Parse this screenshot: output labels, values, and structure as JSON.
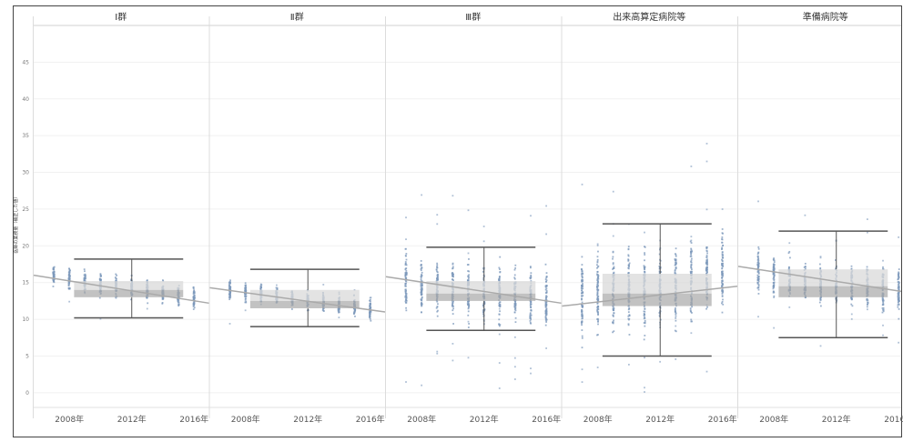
{
  "chart_data": {
    "type": "scatter",
    "ylabel": "医師の業務量（補正した値）",
    "ylim": [
      -2,
      50
    ],
    "yticks": [
      0,
      5,
      10,
      15,
      20,
      25,
      30,
      35,
      40,
      45
    ],
    "xticks": [
      "2008年",
      "2012年",
      "2016年"
    ],
    "grid": true,
    "colors": {
      "points": "#7c98bb",
      "box_light": "#d9d9d9",
      "box_dark": "#a8a8a8",
      "box_line": "#555555",
      "trend": "#aaaaaa"
    },
    "panels": [
      {
        "title": "Ⅰ群",
        "years": [
          2007,
          2008,
          2009,
          2010,
          2011,
          2012,
          2013,
          2014,
          2015,
          2016
        ],
        "centers": [
          16.0,
          15.5,
          15.0,
          14.8,
          14.6,
          14.4,
          14.0,
          13.6,
          13.2,
          12.8
        ],
        "spread": 2.0,
        "box": {
          "whisker_low": 10.2,
          "q1": 13.0,
          "median": 14.0,
          "q3": 15.2,
          "whisker_high": 18.2
        },
        "trend": [
          16.0,
          12.2
        ]
      },
      {
        "title": "Ⅱ群",
        "years": [
          2007,
          2008,
          2009,
          2010,
          2011,
          2012,
          2013,
          2014,
          2015,
          2016
        ],
        "centers": [
          14.0,
          13.6,
          13.3,
          13.0,
          12.8,
          12.6,
          12.3,
          12.0,
          11.7,
          11.4
        ],
        "spread": 1.9,
        "box": {
          "whisker_low": 9.0,
          "q1": 11.5,
          "median": 12.5,
          "q3": 14.0,
          "whisker_high": 16.8
        },
        "trend": [
          14.3,
          11.0
        ]
      },
      {
        "title": "Ⅲ群",
        "years": [
          2007,
          2008,
          2009,
          2010,
          2011,
          2012,
          2013,
          2014,
          2015,
          2016
        ],
        "centers": [
          15.0,
          14.6,
          14.3,
          14.0,
          13.8,
          13.6,
          13.4,
          13.2,
          13.0,
          12.8
        ],
        "spread": 5.5,
        "box": {
          "whisker_low": 8.5,
          "q1": 12.5,
          "median": 13.5,
          "q3": 15.2,
          "whisker_high": 19.8
        },
        "trend": [
          15.8,
          12.2
        ]
      },
      {
        "title": "出来高算定病院等",
        "years": [
          2007,
          2008,
          2009,
          2010,
          2011,
          2012,
          2013,
          2014,
          2015,
          2016
        ],
        "centers": [
          13.0,
          13.2,
          13.5,
          13.8,
          14.0,
          14.2,
          14.5,
          15.0,
          16.0,
          17.0
        ],
        "spread": 7.5,
        "box": {
          "whisker_low": 5.0,
          "q1": 11.8,
          "median": 13.5,
          "q3": 16.2,
          "whisker_high": 23.0
        },
        "trend": [
          11.8,
          14.5
        ]
      },
      {
        "title": "準備病院等",
        "years": [
          2007,
          2008,
          2009,
          2010,
          2011,
          2012,
          2013,
          2014,
          2015,
          2016
        ],
        "centers": [
          16.5,
          16.0,
          15.5,
          15.0,
          14.8,
          14.6,
          14.4,
          14.2,
          14.0,
          13.8
        ],
        "spread": 4.0,
        "box": {
          "whisker_low": 7.5,
          "q1": 13.0,
          "median": 14.5,
          "q3": 16.8,
          "whisker_high": 22.0
        },
        "trend": [
          17.2,
          13.8
        ]
      }
    ]
  }
}
